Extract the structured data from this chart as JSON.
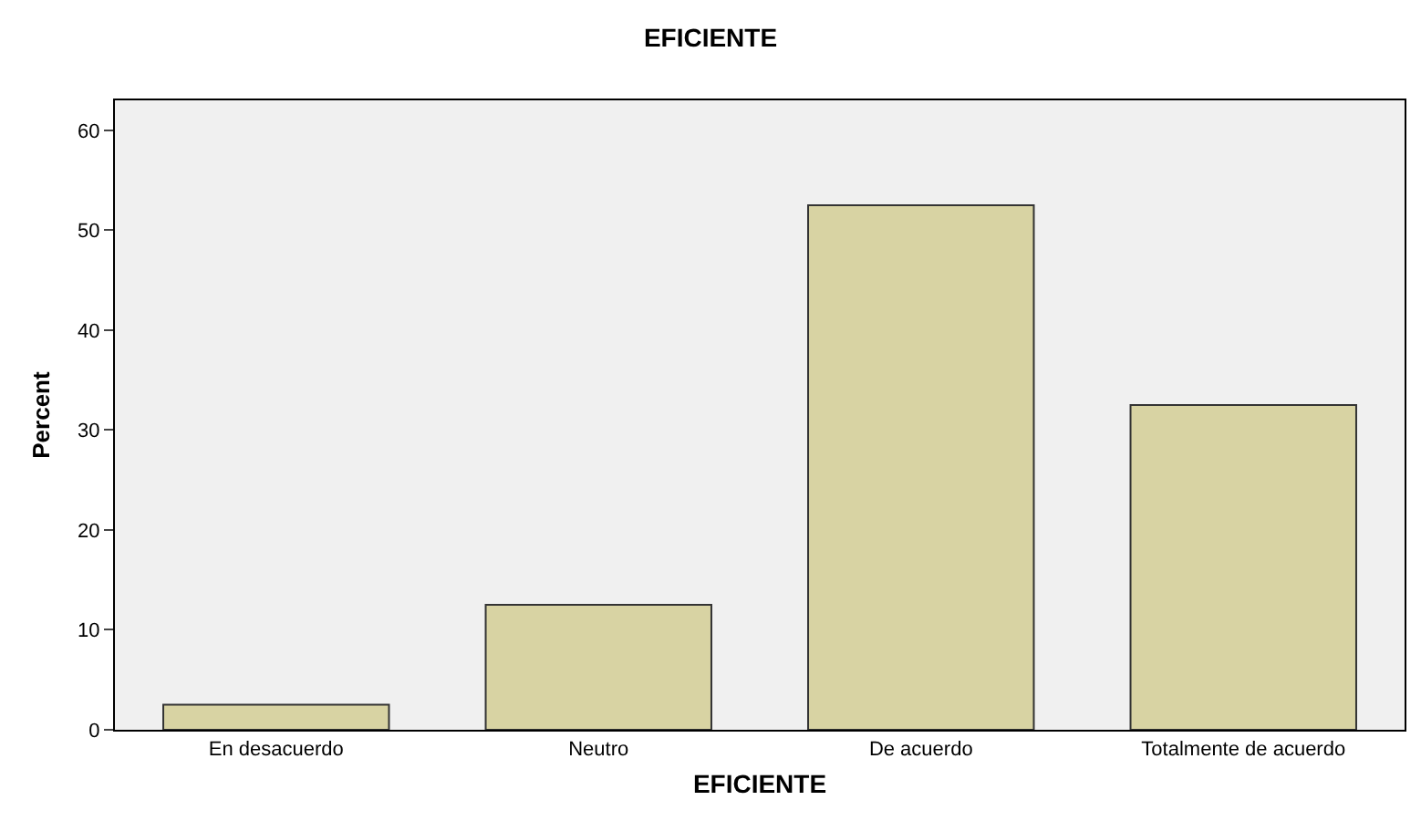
{
  "chart_data": {
    "type": "bar",
    "title": "EFICIENTE",
    "xlabel": "EFICIENTE",
    "ylabel": "Percent",
    "categories": [
      "En desacuerdo",
      "Neutro",
      "De acuerdo",
      "Totalmente de acuerdo"
    ],
    "values": [
      2.5,
      12.5,
      52.5,
      32.5
    ],
    "color": "#d8d3a3",
    "ylim": [
      0,
      63
    ],
    "yticks": [
      0,
      10,
      20,
      30,
      40,
      50,
      60
    ],
    "grid": false
  }
}
